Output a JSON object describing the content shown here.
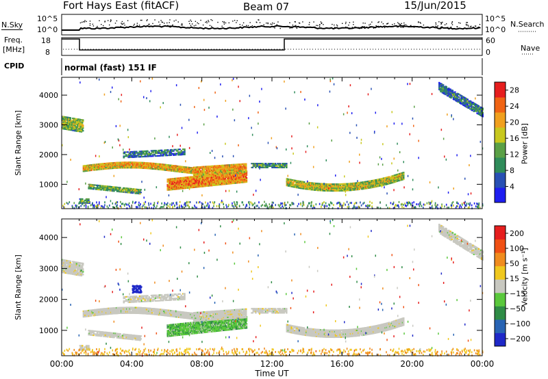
{
  "header": {
    "station": "Fort Hays East (fitACF)",
    "beam": "Beam 07",
    "date": "15/Jun/2015"
  },
  "strip": {
    "nsky_label": "N.Sky",
    "freq_label": "Freq.",
    "freq_unit": "[MHz]",
    "cpid_label": "CPID",
    "nsearch_label": "N.Search",
    "nave_label": "Nave",
    "cpid_text": "normal (fast) 151 IF",
    "noise_ticks": [
      "10^5",
      "10^0"
    ],
    "noise_right_ticks": [
      "10^5",
      "10^0"
    ],
    "freq_ticks": [
      "18",
      "8"
    ],
    "nave_ticks": [
      "60",
      "0"
    ]
  },
  "chart_data": [
    {
      "type": "heatmap",
      "title": "",
      "ylabel": "Slant Range [km]",
      "ylim": [
        180,
        4600
      ],
      "yticks": [
        1000,
        2000,
        3000,
        4000
      ],
      "colorbar": {
        "label": "Power [dB]",
        "ticks": [
          4,
          8,
          12,
          16,
          20,
          24,
          28
        ],
        "range": [
          0,
          30
        ],
        "colors": [
          "#1e1ef0",
          "#2850b4",
          "#2f8c5a",
          "#5aa046",
          "#c8c81e",
          "#f0a01e",
          "#f06414",
          "#e61e1e"
        ]
      }
    },
    {
      "type": "heatmap",
      "title": "",
      "xlabel": "Time UT",
      "ylabel": "Slant Range [km]",
      "ylim": [
        180,
        4600
      ],
      "yticks": [
        1000,
        2000,
        3000,
        4000
      ],
      "xticks": [
        "00:00",
        "04:00",
        "08:00",
        "12:00",
        "16:00",
        "20:00",
        "00:00"
      ],
      "colorbar": {
        "label": "Velocity [m s⁻¹]",
        "ticks": [
          "200",
          "100",
          "50",
          "15",
          "−15",
          "−50",
          "−100",
          "−200"
        ],
        "colors": [
          "#1e28c8",
          "#2864b4",
          "#2f8c46",
          "#5ac83c",
          "#c8c8c0",
          "#f0c81e",
          "#f08c1e",
          "#f05014",
          "#e61e1e"
        ]
      }
    }
  ]
}
